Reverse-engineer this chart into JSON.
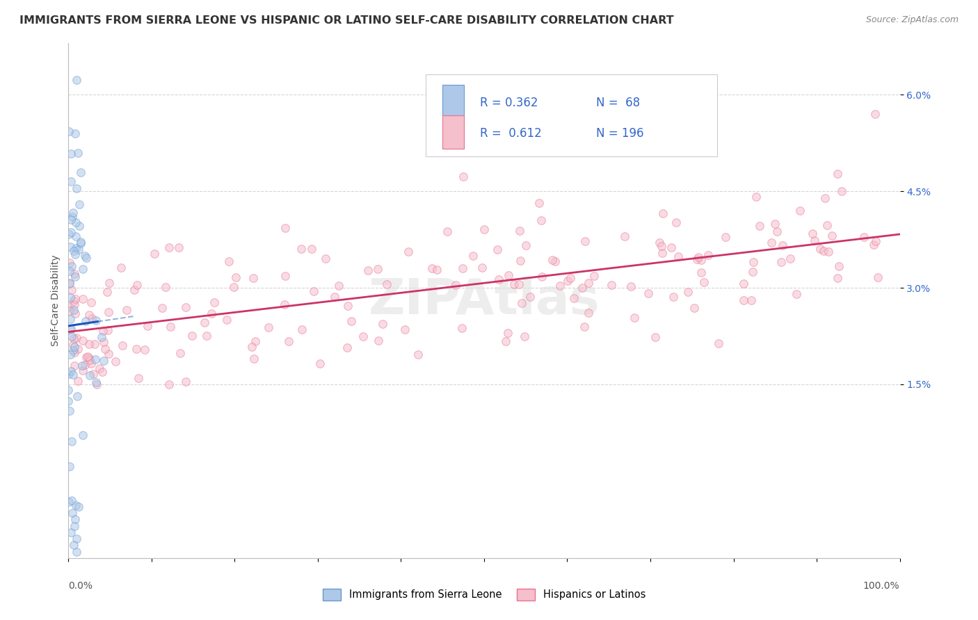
{
  "title": "IMMIGRANTS FROM SIERRA LEONE VS HISPANIC OR LATINO SELF-CARE DISABILITY CORRELATION CHART",
  "source": "Source: ZipAtlas.com",
  "ylabel": "Self-Care Disability",
  "y_tick_labels": [
    "6.0%",
    "4.5%",
    "3.0%",
    "1.5%"
  ],
  "y_tick_values": [
    6.0,
    4.5,
    3.0,
    1.5
  ],
  "xmin": 0.0,
  "xmax": 100.0,
  "ymin": -1.2,
  "ymax": 6.8,
  "blue_color": "#adc8e8",
  "blue_edge_color": "#6699cc",
  "pink_color": "#f5bfcc",
  "pink_edge_color": "#e87090",
  "blue_line_color": "#1a55bb",
  "pink_line_color": "#cc3366",
  "legend_text_color": "#3366cc",
  "watermark": "ZIPAtlas",
  "legend_label1": "Immigrants from Sierra Leone",
  "legend_label2": "Hispanics or Latinos",
  "blue_R": 0.362,
  "blue_N": 68,
  "pink_R": 0.612,
  "pink_N": 196,
  "scatter_alpha": 0.55,
  "scatter_size": 70,
  "grid_color": "#cccccc",
  "background_color": "#ffffff",
  "title_fontsize": 11.5,
  "axis_label_fontsize": 10,
  "tick_fontsize": 10,
  "legend_fontsize": 12
}
